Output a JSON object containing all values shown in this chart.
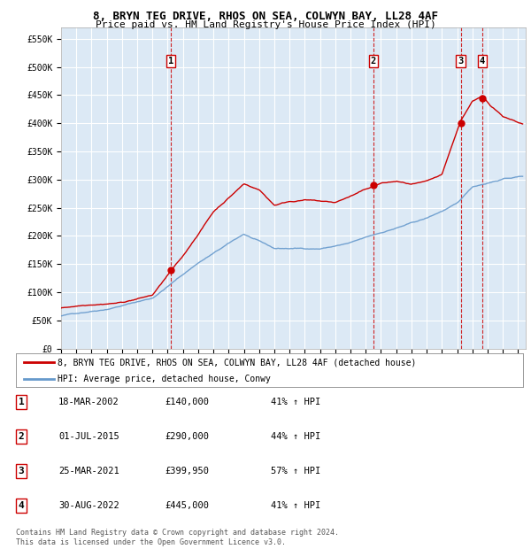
{
  "title1": "8, BRYN TEG DRIVE, RHOS ON SEA, COLWYN BAY, LL28 4AF",
  "title2": "Price paid vs. HM Land Registry's House Price Index (HPI)",
  "ylim": [
    0,
    570000
  ],
  "xlim_start": 1995.0,
  "xlim_end": 2025.5,
  "bg_color": "#dce9f5",
  "grid_color": "#ffffff",
  "sale_dates_num": [
    2002.21,
    2015.5,
    2021.23,
    2022.66
  ],
  "sale_prices": [
    140000,
    290000,
    399950,
    445000
  ],
  "sale_labels": [
    "1",
    "2",
    "3",
    "4"
  ],
  "legend_label_red": "8, BRYN TEG DRIVE, RHOS ON SEA, COLWYN BAY, LL28 4AF (detached house)",
  "legend_label_blue": "HPI: Average price, detached house, Conwy",
  "table_rows": [
    [
      "1",
      "18-MAR-2002",
      "£140,000",
      "41% ↑ HPI"
    ],
    [
      "2",
      "01-JUL-2015",
      "£290,000",
      "44% ↑ HPI"
    ],
    [
      "3",
      "25-MAR-2021",
      "£399,950",
      "57% ↑ HPI"
    ],
    [
      "4",
      "30-AUG-2022",
      "£445,000",
      "41% ↑ HPI"
    ]
  ],
  "footer": "Contains HM Land Registry data © Crown copyright and database right 2024.\nThis data is licensed under the Open Government Licence v3.0.",
  "red_color": "#cc0000",
  "blue_color": "#6699cc"
}
